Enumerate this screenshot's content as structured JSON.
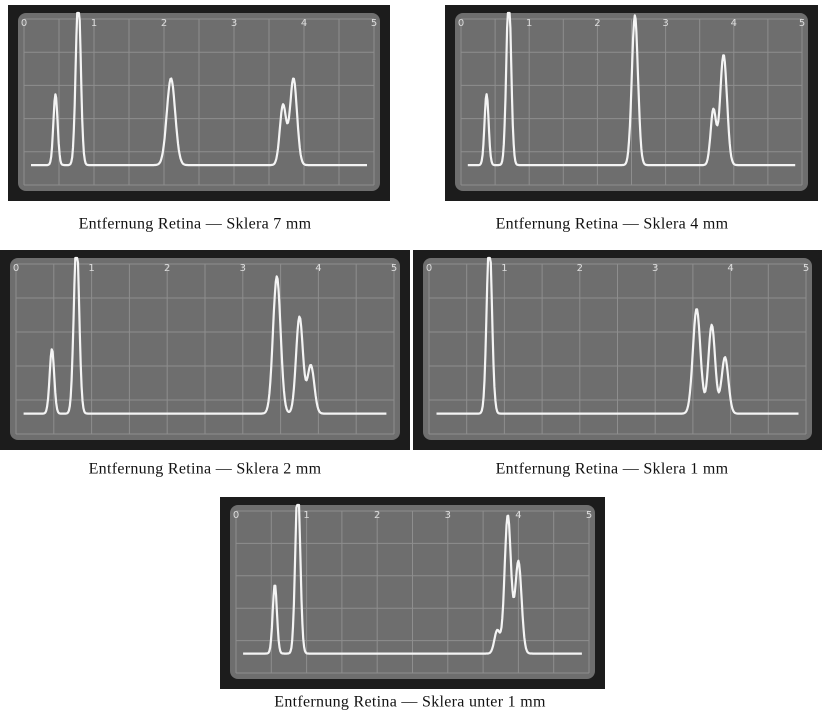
{
  "figure": {
    "scale_labels": [
      "0",
      "1",
      "2",
      "3",
      "4",
      "5"
    ],
    "panels": [
      {
        "caption": "Entfernung Retina — Sklera 7 mm"
      },
      {
        "caption": "Entfernung Retina — Sklera 4 mm"
      },
      {
        "caption": "Entfernung Retina — Sklera 2 mm"
      },
      {
        "caption": "Entfernung Retina — Sklera 1 mm"
      },
      {
        "caption": "Entfernung Retina — Sklera unter 1 mm"
      }
    ]
  }
}
